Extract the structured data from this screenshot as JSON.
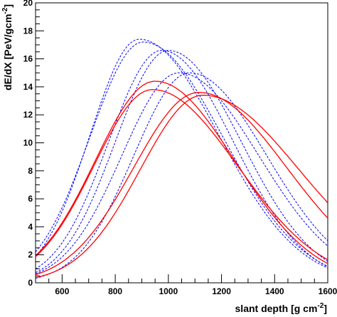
{
  "chart_data": {
    "type": "line",
    "title": "",
    "xlabel": "slant depth [g cm",
    "xlabel_sup": "-2",
    "xlabel_end": "]",
    "ylabel": "dE/dX [PeV/gcm",
    "ylabel_sup": "-2",
    "ylabel_end": "]",
    "xlim": [
      500,
      1600
    ],
    "ylim": [
      0,
      20
    ],
    "x_ticks": [
      600,
      800,
      1000,
      1200,
      1400,
      1600
    ],
    "y_ticks": [
      0,
      2,
      4,
      6,
      8,
      10,
      12,
      14,
      16,
      18,
      20
    ],
    "grid": false,
    "legend": "none",
    "series": [
      {
        "style": "dashed",
        "color": "#0000ff",
        "peak_x": 890,
        "peak_y": 17.4,
        "sigma_left": 185,
        "sigma_right": 300,
        "x": [
          500,
          600,
          700,
          800,
          900,
          1000,
          1100,
          1200,
          1300,
          1400,
          1500,
          1600
        ],
        "y": [
          1.8,
          6.0,
          11.0,
          15.6,
          17.4,
          16.5,
          14.0,
          10.3,
          7.1,
          4.5,
          2.6,
          1.3
        ]
      },
      {
        "style": "dashed",
        "color": "#0000ff",
        "peak_x": 905,
        "peak_y": 17.2,
        "sigma_left": 200,
        "sigma_right": 300,
        "x": [
          500,
          600,
          700,
          800,
          900,
          1000,
          1100,
          1200,
          1300,
          1400,
          1500,
          1600
        ],
        "y": [
          2.0,
          6.2,
          10.8,
          15.0,
          17.2,
          16.5,
          14.2,
          10.8,
          7.4,
          4.8,
          2.9,
          1.4
        ]
      },
      {
        "style": "dashed",
        "color": "#0000ff",
        "peak_x": 975,
        "peak_y": 16.6,
        "sigma_left": 200,
        "sigma_right": 270,
        "x": [
          500,
          600,
          700,
          800,
          900,
          1000,
          1100,
          1200,
          1300,
          1400,
          1500,
          1600
        ],
        "y": [
          1.0,
          3.7,
          7.6,
          12.1,
          15.6,
          16.5,
          14.9,
          11.9,
          8.3,
          5.2,
          2.9,
          1.5
        ]
      },
      {
        "style": "dashed",
        "color": "#0000ff",
        "peak_x": 1000,
        "peak_y": 16.6,
        "sigma_left": 200,
        "sigma_right": 275,
        "x": [
          500,
          600,
          700,
          800,
          900,
          1000,
          1100,
          1200,
          1300,
          1400,
          1500,
          1600
        ],
        "y": [
          0.8,
          3.0,
          6.9,
          11.3,
          15.2,
          16.6,
          15.4,
          12.6,
          9.1,
          5.8,
          3.3,
          1.6
        ]
      },
      {
        "style": "dashed",
        "color": "#0000ff",
        "peak_x": 1040,
        "peak_y": 15.0,
        "sigma_left": 215,
        "sigma_right": 300,
        "x": [
          500,
          600,
          700,
          800,
          900,
          1000,
          1100,
          1200,
          1300,
          1400,
          1500,
          1600
        ],
        "y": [
          1.5,
          4.0,
          7.0,
          10.4,
          13.4,
          14.8,
          14.7,
          13.2,
          10.8,
          8.0,
          5.5,
          3.5
        ]
      },
      {
        "style": "dashed",
        "color": "#0000ff",
        "peak_x": 1080,
        "peak_y": 15.0,
        "sigma_left": 210,
        "sigma_right": 290,
        "x": [
          500,
          600,
          700,
          800,
          900,
          1000,
          1100,
          1200,
          1300,
          1400,
          1500,
          1600
        ],
        "y": [
          1.1,
          3.1,
          6.0,
          9.4,
          12.5,
          14.4,
          15.0,
          14.0,
          11.7,
          8.9,
          6.1,
          3.8
        ]
      },
      {
        "style": "solid",
        "color": "#ff0000",
        "peak_x": 950,
        "peak_y": 14.4,
        "sigma_left": 225,
        "sigma_right": 300,
        "x": [
          500,
          600,
          700,
          800,
          900,
          1000,
          1100,
          1200,
          1300,
          1400,
          1500,
          1600
        ],
        "y": [
          2.0,
          4.6,
          8.0,
          11.4,
          13.8,
          14.4,
          13.2,
          11.0,
          8.3,
          5.8,
          3.8,
          2.3
        ]
      },
      {
        "style": "solid",
        "color": "#ff0000",
        "peak_x": 940,
        "peak_y": 13.8,
        "sigma_left": 220,
        "sigma_right": 320,
        "x": [
          500,
          600,
          700,
          800,
          900,
          1000,
          1100,
          1200,
          1300,
          1400,
          1500,
          1600
        ],
        "y": [
          2.2,
          5.0,
          8.5,
          11.7,
          13.6,
          13.7,
          12.7,
          10.9,
          8.6,
          6.3,
          4.3,
          2.7
        ]
      },
      {
        "style": "solid",
        "color": "#ff0000",
        "peak_x": 1115,
        "peak_y": 13.6,
        "sigma_left": 245,
        "sigma_right": 330,
        "x": [
          500,
          600,
          700,
          800,
          900,
          1000,
          1100,
          1200,
          1300,
          1400,
          1500,
          1600
        ],
        "y": [
          0.6,
          1.8,
          3.9,
          6.6,
          9.6,
          12.1,
          13.5,
          13.2,
          11.8,
          9.7,
          7.3,
          5.1
        ]
      },
      {
        "style": "solid",
        "color": "#ff0000",
        "peak_x": 1130,
        "peak_y": 13.4,
        "sigma_left": 235,
        "sigma_right": 360,
        "x": [
          500,
          600,
          700,
          800,
          900,
          1000,
          1100,
          1200,
          1300,
          1400,
          1500,
          1600
        ],
        "y": [
          0.35,
          1.2,
          3.2,
          6.1,
          9.3,
          12.0,
          13.3,
          13.1,
          12.0,
          10.3,
          8.3,
          6.3
        ]
      }
    ]
  }
}
